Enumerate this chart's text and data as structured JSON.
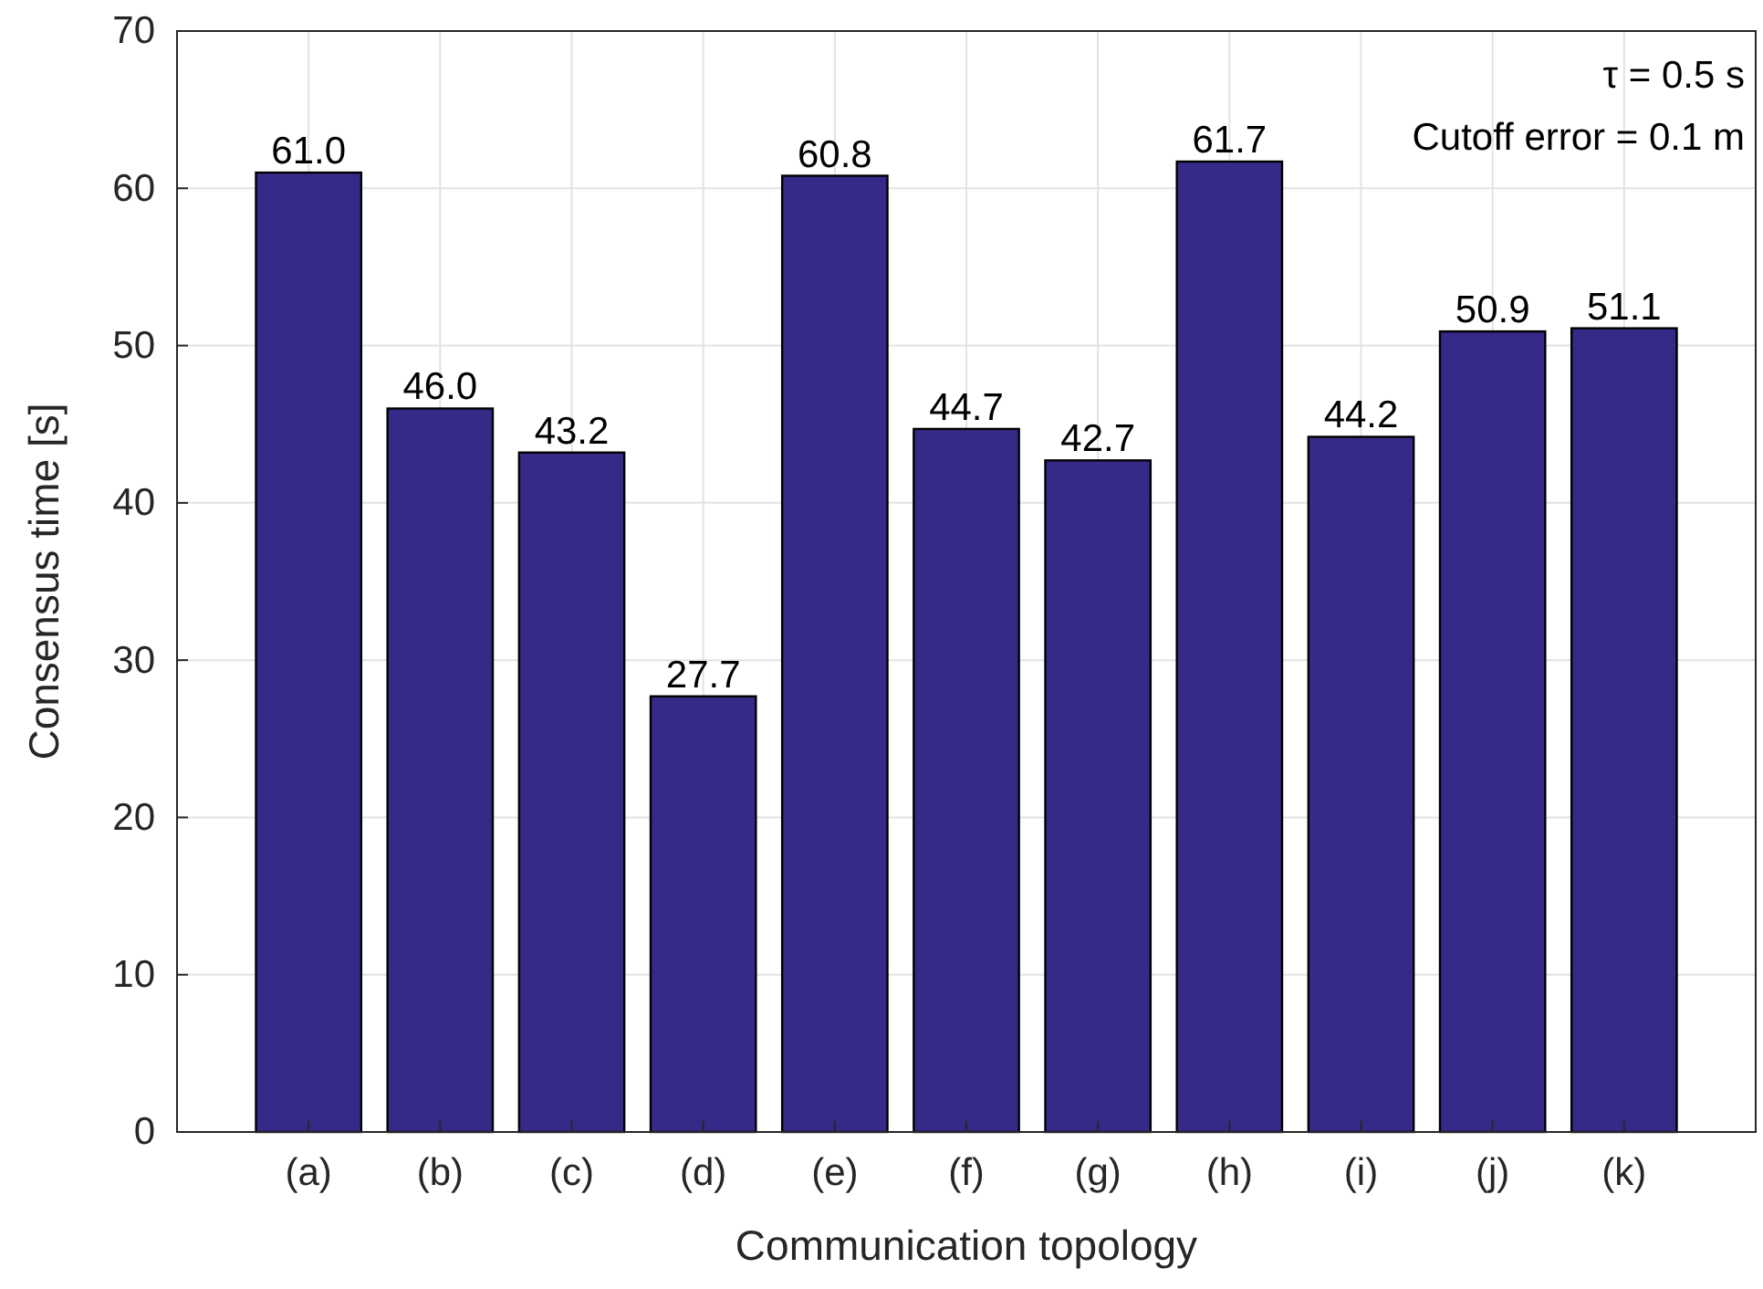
{
  "chart_data": {
    "type": "bar",
    "xlabel": "Communication topology",
    "ylabel": "Consensus time [s]",
    "categories": [
      "(a)",
      "(b)",
      "(c)",
      "(d)",
      "(e)",
      "(f)",
      "(g)",
      "(h)",
      "(i)",
      "(j)",
      "(k)"
    ],
    "values": [
      61.0,
      46.0,
      43.2,
      27.7,
      60.8,
      44.7,
      42.7,
      61.7,
      44.2,
      50.9,
      51.1
    ],
    "value_labels": [
      "61.0",
      "46.0",
      "43.2",
      "27.7",
      "60.8",
      "44.7",
      "42.7",
      "61.7",
      "44.2",
      "50.9",
      "51.1"
    ],
    "color": "#352a87",
    "ylim": [
      0,
      70
    ],
    "yticks": [
      0,
      10,
      20,
      30,
      40,
      50,
      60,
      70
    ],
    "grid": true,
    "annotations": [
      "τ = 0.5 s",
      "Cutoff error = 0.1 m"
    ]
  }
}
